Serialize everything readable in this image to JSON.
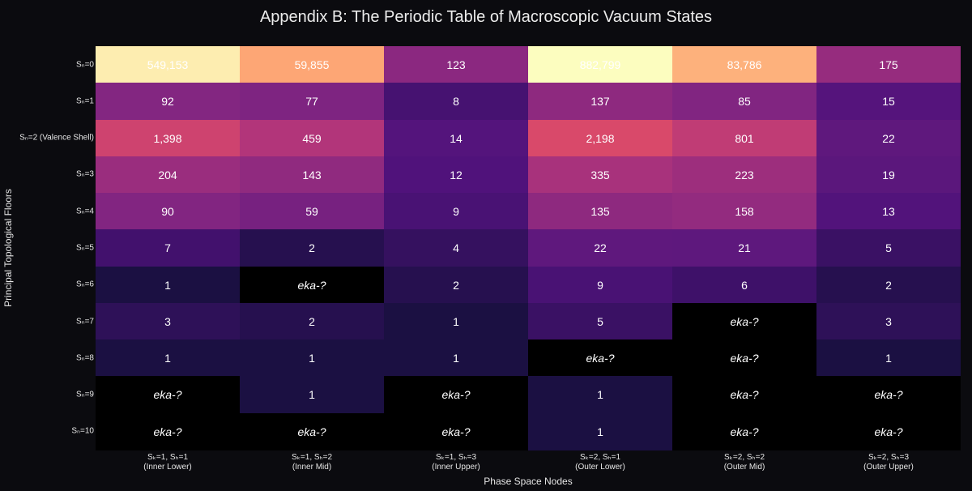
{
  "chart_data": {
    "type": "heatmap",
    "title": "Appendix B: The Periodic Table of Macroscopic Vacuum States",
    "xlabel": "Phase Space Nodes",
    "ylabel": "Principal Topological Floors",
    "x_categories": [
      [
        "Sₖ=1, Sₕ=1",
        "(Inner Lower)"
      ],
      [
        "Sₖ=1, Sₕ=2",
        "(Inner Mid)"
      ],
      [
        "Sₖ=1, Sₕ=3",
        "(Inner Upper)"
      ],
      [
        "Sₖ=2, Sₕ=1",
        "(Outer Lower)"
      ],
      [
        "Sₖ=2, Sₕ=2",
        "(Outer Mid)"
      ],
      [
        "Sₖ=2, Sₕ=3",
        "(Outer Upper)"
      ]
    ],
    "y_categories": [
      "Sₙ=0",
      "Sₙ=1",
      "Sₙ=2 (Valence Shell)",
      "Sₙ=3",
      "Sₙ=4",
      "Sₙ=5",
      "Sₙ=6",
      "Sₙ=7",
      "Sₙ=8",
      "Sₙ=9",
      "Sₙ=10"
    ],
    "values": [
      [
        549153,
        59855,
        123,
        882799,
        83786,
        175
      ],
      [
        92,
        77,
        8,
        137,
        85,
        15
      ],
      [
        1398,
        459,
        14,
        2198,
        801,
        22
      ],
      [
        204,
        143,
        12,
        335,
        223,
        19
      ],
      [
        90,
        59,
        9,
        135,
        158,
        13
      ],
      [
        7,
        2,
        4,
        22,
        21,
        5
      ],
      [
        1,
        null,
        2,
        9,
        6,
        2
      ],
      [
        3,
        2,
        1,
        5,
        null,
        3
      ],
      [
        1,
        1,
        1,
        null,
        null,
        1
      ],
      [
        null,
        1,
        null,
        1,
        null,
        null
      ],
      [
        null,
        null,
        null,
        1,
        null,
        null
      ]
    ],
    "missing_label": "eka-?",
    "colorscale": "magma",
    "grid": false
  }
}
